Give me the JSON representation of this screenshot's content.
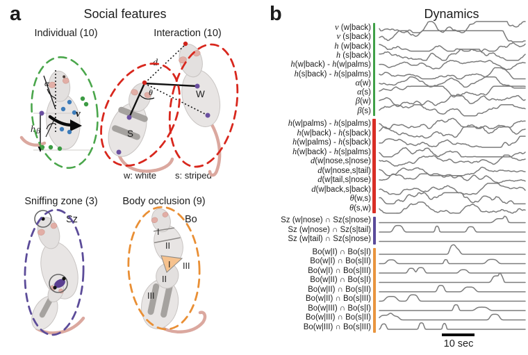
{
  "panel_a": {
    "label": "a",
    "title": "Social features",
    "individual": {
      "title": "Individual (10)",
      "alpha": "α",
      "beta": "β",
      "h": "h",
      "v": "v"
    },
    "interaction": {
      "title": "Interaction (10)",
      "d": "d",
      "theta": "θ",
      "white_tag": "W",
      "striped_tag": "S"
    },
    "legend": {
      "white": "w: white",
      "striped": "s: striped"
    },
    "sniffing": {
      "title": "Sniffing zone (3)",
      "tag": "Sz"
    },
    "occlusion": {
      "title": "Body occlusion (9)",
      "tag": "Bo",
      "zones_top": [
        "I",
        "II"
      ],
      "zones_mid": [
        "I",
        "III"
      ],
      "zones_bottom": [
        "II",
        "III"
      ]
    }
  },
  "panel_b": {
    "label": "b",
    "title": "Dynamics",
    "scale_label": "10 sec",
    "groups": [
      {
        "name": "individual",
        "color": "#3fa047",
        "traces": [
          {
            "label": "v (w|back)",
            "style": "noisy",
            "amp": 6
          },
          {
            "label": "v (s|back)",
            "style": "noisy",
            "amp": 6
          },
          {
            "label": "h (w|back)",
            "style": "noisy",
            "amp": 5
          },
          {
            "label": "h (s|back)",
            "style": "noisy",
            "amp": 6
          },
          {
            "label": "h(w|back) - h(w|palms)",
            "style": "noisy",
            "amp": 3.5
          },
          {
            "label": "h(s|back) - h(s|palms)",
            "style": "noisy",
            "amp": 4
          },
          {
            "label": "α(w)",
            "style": "noisy",
            "amp": 4
          },
          {
            "label": "α(s)",
            "style": "noisy",
            "amp": 4.5
          },
          {
            "label": "β(w)",
            "style": "noisy",
            "amp": 5
          },
          {
            "label": "β(s)",
            "style": "noisy",
            "amp": 5.5
          }
        ]
      },
      {
        "name": "interaction",
        "color": "#d92f26",
        "traces": [
          {
            "label": "h(w|palms) - h(s|palms)",
            "style": "noisy",
            "amp": 5
          },
          {
            "label": "h(w|back) - h(s|back)",
            "style": "noisy",
            "amp": 5.5
          },
          {
            "label": "h(w|palms) - h(s|back)",
            "style": "noisy",
            "amp": 5
          },
          {
            "label": "h(w|back) - h(s|palms)",
            "style": "noisy",
            "amp": 5.5
          },
          {
            "label": "d(w|nose,s|nose)",
            "style": "noisy",
            "amp": 4.5
          },
          {
            "label": "d(w|nose,s|tail)",
            "style": "noisy",
            "amp": 4
          },
          {
            "label": "d(w|tail,s|nose)",
            "style": "noisy",
            "amp": 4
          },
          {
            "label": "d(w|back,s|back)",
            "style": "noisy",
            "amp": 4
          },
          {
            "label": "θ(w,s)",
            "style": "noisy",
            "amp": 6.5
          },
          {
            "label": "θ(s,w)",
            "style": "noisy",
            "amp": 5
          }
        ]
      },
      {
        "name": "sniffing",
        "color": "#5b4b9b",
        "traces": [
          {
            "label": "Sz (w|nose) ∩ Sz(s|nose)",
            "style": "sparse",
            "events": 2
          },
          {
            "label": "Sz (w|nose) ∩ Sz(s|tail)",
            "style": "sparse",
            "events": 3
          },
          {
            "label": "Sz (w|tail) ∩ Sz(s|nose)",
            "style": "sparse",
            "events": 0
          }
        ]
      },
      {
        "name": "occlusion",
        "color": "#e9953f",
        "traces": [
          {
            "label": "Bo(w|I) ∩ Bo(s|I)",
            "style": "sparse",
            "events": 2
          },
          {
            "label": "Bo(w|I) ∩ Bo(s|II)",
            "style": "sparse",
            "events": 3
          },
          {
            "label": "Bo(w|I) ∩ Bo(s|III)",
            "style": "sparse",
            "events": 3
          },
          {
            "label": "Bo(w|II) ∩ Bo(s|I)",
            "style": "sparse",
            "events": 2
          },
          {
            "label": "Bo(w|II) ∩ Bo(s|II)",
            "style": "sparse",
            "events": 2
          },
          {
            "label": "Bo(w|II) ∩ Bo(s|III)",
            "style": "sparse",
            "events": 2
          },
          {
            "label": "Bo(w|III) ∩ Bo(s|I)",
            "style": "sparse",
            "events": 2
          },
          {
            "label": "Bo(w|III) ∩ Bo(s|II)",
            "style": "sparse",
            "events": 3
          },
          {
            "label": "Bo(w|III) ∩ Bo(s|III)",
            "style": "sparse",
            "events": 3
          }
        ]
      }
    ]
  },
  "colors": {
    "trace": "#7b7b7b",
    "group_individual": "#3fa047",
    "group_interaction": "#d92f26",
    "group_sniffing": "#5b4b9b",
    "group_occlusion": "#e9953f",
    "outline_individual": "#4aa64b",
    "outline_interaction": "#d8271d",
    "outline_sniffing": "#5c4c99",
    "outline_occlusion": "#e98f35"
  }
}
